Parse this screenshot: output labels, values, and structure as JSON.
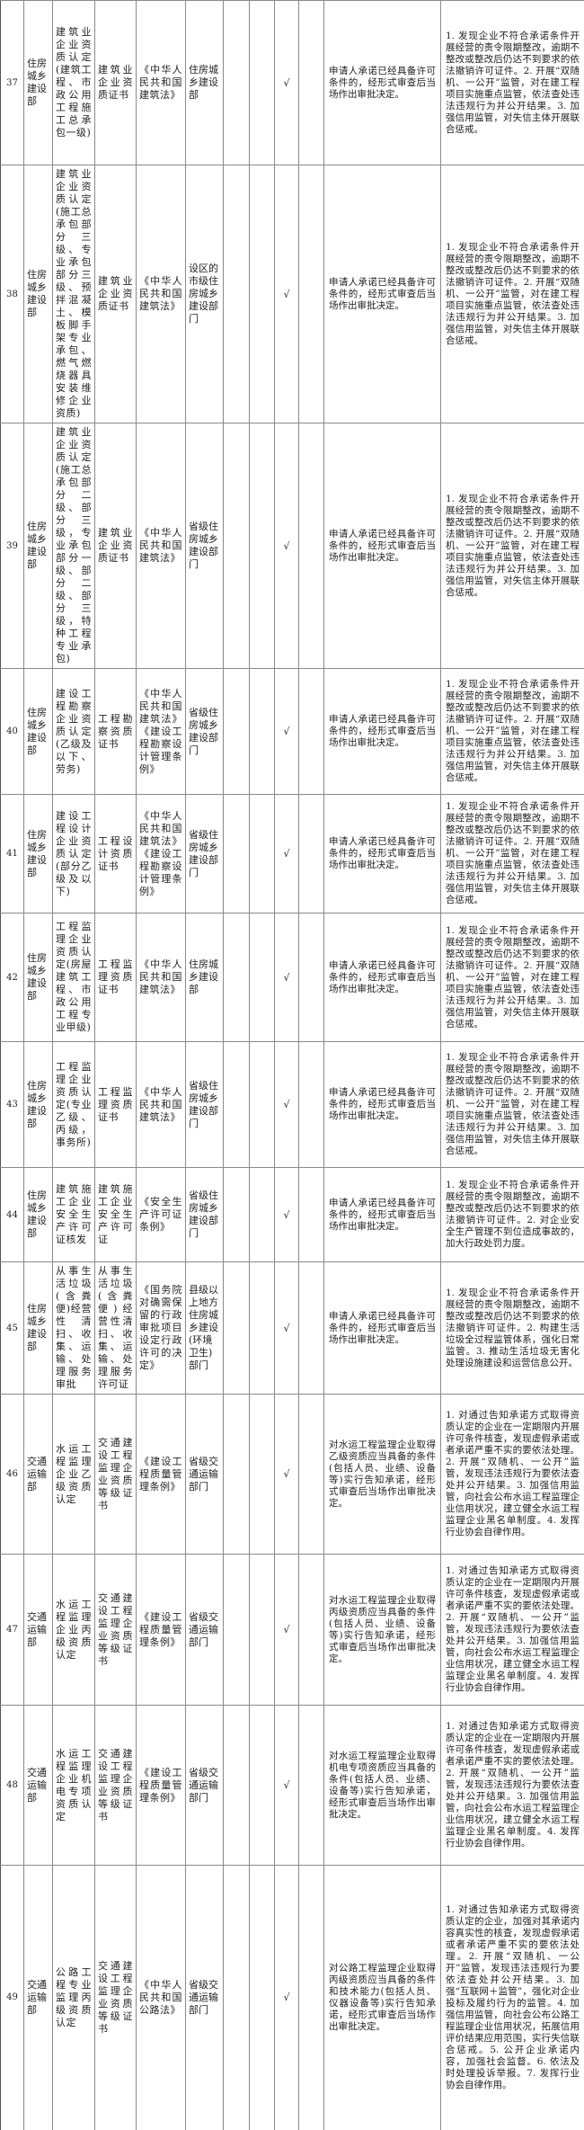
{
  "check_mark": "√",
  "check_column": 3,
  "rows": [
    {
      "no": "37",
      "dept": "住房城乡建设部",
      "item": "建筑业企业资质认定(建筑工程、市政公用工程施工总承包一级)",
      "cert": "建筑业企业资质证书",
      "law": "《中华人民共和国建筑法》",
      "authority": "住房城乡建设部",
      "condition": "申请人承诺已经具备许可条件的，经形式审查后当场作出审批决定。",
      "measures": "1. 发现企业不符合承诺条件开展经营的责令限期整改，逾期不整改或整改后仍达不到要求的依法撤销许可证件。2. 开展“双随机、一公开”监管，对在建工程项目实施重点监管，依法查处违法违规行为并公开结果。3. 加强信用监管，对失信主体开展联合惩戒。"
    },
    {
      "no": "38",
      "dept": "住房城乡建设部",
      "item": "建筑业企业资质认定(施工总承包部分三级、专业承包部分三级、预拌混凝土、模板脚手架专业承包、燃气燃烧器具安装维修企业资质)",
      "cert": "建筑业企业资质证书",
      "law": "《中华人民共和国建筑法》",
      "authority": "设区的市级住房城乡建设部门",
      "condition": "申请人承诺已经具备许可条件的，经形式审查后当场作出审批决定。",
      "measures": "1. 发现企业不符合承诺条件开展经营的责令限期整改，逾期不整改或整改后仍达不到要求的依法撤销许可证件。2. 开展“双随机、一公开”监管，对在建工程项目实施重点监管，依法查处违法违规行为并公开结果。3. 加强信用监管，对失信主体开展联合惩戒。"
    },
    {
      "no": "39",
      "dept": "住房城乡建设部",
      "item": "建筑业企业资质认定(施工总承包部分二级、部分三级，专业承包部分一级、部分二级、部分三级，特种工程专业承包)",
      "cert": "建筑业企业资质证书",
      "law": "《中华人民共和国建筑法》",
      "authority": "省级住房城乡建设部门",
      "condition": "申请人承诺已经具备许可条件的，经形式审查后当场作出审批决定。",
      "measures": "1. 发现企业不符合承诺条件开展经营的责令限期整改，逾期不整改或整改后仍达不到要求的依法撤销许可证件。2. 开展“双随机、一公开”监管，对在建工程项目实施重点监管，依法查处违法违规行为并公开结果。3. 加强信用监管，对失信主体开展联合惩戒。"
    },
    {
      "no": "40",
      "dept": "住房城乡建设部",
      "item": "建设工程勘察企业资质认定(乙级及以下、劳务)",
      "cert": "工程勘察资质证书",
      "law": "《中华人民共和国建筑法》《建设工程勘察设计管理条例》",
      "authority": "省级住房城乡建设部门",
      "condition": "申请人承诺已经具备许可条件的，经形式审查后当场作出审批决定。",
      "measures": "1. 发现企业不符合承诺条件开展经营的责令限期整改，逾期不整改或整改后仍达不到要求的依法撤销许可证件。2. 开展“双随机、一公开”监管，对在建工程项目实施重点监管，依法查处违法违规行为并公开结果。3. 加强信用监管，对失信主体开展联合惩戒。"
    },
    {
      "no": "41",
      "dept": "住房城乡建设部",
      "item": "建设工程设计企业资质认定(部分乙级及以下)",
      "cert": "工程设计资质证书",
      "law": "《中华人民共和国建筑法》《建设工程勘察设计管理条例》",
      "authority": "省级住房城乡建设部门",
      "condition": "申请人承诺已经具备许可条件的，经形式审查后当场作出审批决定。",
      "measures": "1. 发现企业不符合承诺条件开展经营的责令限期整改，逾期不整改或整改后仍达不到要求的依法撤销许可证件。2. 开展“双随机、一公开”监管，对在建工程项目实施重点监管，依法查处违法违规行为并公开结果。3. 加强信用监管，对失信主体开展联合惩戒。"
    },
    {
      "no": "42",
      "dept": "住房城乡建设部",
      "item": "工程监理企业资质认定(房屋建筑工程、市政公用工程专业甲级)",
      "cert": "工程监理资质证书",
      "law": "《中华人民共和国建筑法》",
      "authority": "住房城乡建设部",
      "condition": "申请人承诺已经具备许可条件的，经形式审查后当场作出审批决定。",
      "measures": "1. 发现企业不符合承诺条件开展经营的责令限期整改，逾期不整改或整改后仍达不到要求的依法撤销许可证件。2. 开展“双随机、一公开”监管，对在建工程项目实施重点监管，依法查处违法违规行为并公开结果。3. 加强信用监管，对失信主体开展联合惩戒。"
    },
    {
      "no": "43",
      "dept": "住房城乡建设部",
      "item": "工程监理企业资质认定(专业乙级、丙级，事务所)",
      "cert": "工程监理资质证书",
      "law": "《中华人民共和国建筑法》",
      "authority": "省级住房城乡建设部门",
      "condition": "申请人承诺已经具备许可条件的，经形式审查后当场作出审批决定。",
      "measures": "1. 发现企业不符合承诺条件开展经营的责令限期整改，逾期不整改或整改后仍达不到要求的依法撤销许可证件。2. 开展“双随机、一公开”监管，对在建工程项目实施重点监管，依法查处违法违规行为并公开结果。3. 加强信用监管，对失信主体开展联合惩戒。"
    },
    {
      "no": "44",
      "dept": "住房城乡建设部",
      "item": "建筑施工企业安全生产许可证核发",
      "cert": "建筑施工企业安全生产许可证",
      "law": "《安全生产许可证条例》",
      "authority": "省级住房城乡建设部门",
      "condition": "申请人承诺已经具备许可条件的，经形式审查后当场作出审批决定。",
      "measures": "1. 发现企业不符合承诺条件开展经营的责令限期整改，逾期不整改或整改后仍达不到要求的依法撤销许可证件。2. 对企业安全生产管理不到位造成事故的，加大行政处罚力度。"
    },
    {
      "no": "45",
      "dept": "住房城乡建设部",
      "item": "从事生活垃圾(含粪便)经营性清扫、收集、运输、处理服务审批",
      "cert": "从事生活垃圾(含粪便)经营性清扫、收集、运输、处理服务许可证",
      "law": "《国务院对确需保留的行政审批项目设定行政许可的决定》",
      "authority": "县级以上地方住房城乡建设(环境卫生)部门",
      "condition": "申请人承诺已经具备许可条件的，经形式审查后当场作出审批决定。",
      "measures": "1. 发现企业不符合承诺条件开展经营的责令限期整改，逾期不整改或整改后仍达不到要求的依法撤销许可证件。2. 构建生活垃圾全过程监管体系，强化日常监管。3. 推动生活垃圾无害化处理设施建设和运营信息公开。"
    },
    {
      "no": "46",
      "dept": "交通运输部",
      "item": "水运工程监理企业乙级资质认定",
      "cert": "交通建设工程监理企业资质等级证书",
      "law": "《建设工程质量管理条例》",
      "authority": "省级交通运输部门",
      "condition": "对水运工程监理企业取得乙级资质应当具备的条件(包括人员、业绩、设备等)实行告知承诺，经形式审查后当场作出审批决定。",
      "measures": "1. 对通过告知承诺方式取得资质认定的企业在一定期限内开展许可条件核查，发现虚假承诺或者承诺严重不实的要依法处理。2. 开展“双随机、一公开”监管，发现违法违规行为要依法查处并公开结果。3. 加强信用监管，向社会公布水运工程监理企业信用状况，建立健全水运工程监理企业黑名单制度。4. 发挥行业协会自律作用。"
    },
    {
      "no": "47",
      "dept": "交通运输部",
      "item": "水运工程监理企业丙级资质认定",
      "cert": "交通建设工程监理企业资质等级证书",
      "law": "《建设工程质量管理条例》",
      "authority": "省级交通运输部门",
      "condition": "对水运工程监理企业取得丙级资质应当具备的条件(包括人员、业绩、设备等)实行告知承诺，经形式审查后当场作出审批决定。",
      "measures": "1. 对通过告知承诺方式取得资质认定的企业在一定期限内开展许可条件核查，发现虚假承诺或者承诺严重不实的要依法处理。2. 开展“双随机、一公开”监管，发现违法违规行为要依法查处并公开结果。3. 加强信用监管，向社会公布水运工程监理企业信用状况，建立健全水运工程监理企业黑名单制度。4. 发挥行业协会自律作用。"
    },
    {
      "no": "48",
      "dept": "交通运输部",
      "item": "水运工程监理企业机电专项资质认定",
      "cert": "交通建设工程监理企业资质等级证书",
      "law": "《建设工程质量管理条例》",
      "authority": "省级交通运输部门",
      "condition": "对水运工程监理企业取得机电专项资质应当具备的条件(包括人员、业绩、设备等)实行告知承诺，经形式审查后当场作出审批决定。",
      "measures": "1. 对通过告知承诺方式取得资质认定的企业在一定期限内开展许可条件核查，发现虚假承诺或者承诺严重不实的要依法处理。2. 开展“双随机、一公开”监管，发现违法违规行为要依法查处并公开结果。3. 加强信用监管，向社会公布水运工程监理企业信用状况，建立健全水运工程监理企业黑名单制度。4. 发挥行业协会自律作用。"
    },
    {
      "no": "49",
      "dept": "交通运输部",
      "item": "公路工程专业监理丙级资质认定",
      "cert": "交通建设工程监理企业资质等级证书",
      "law": "《中华人民共和国公路法》",
      "authority": "省级交通运输部门",
      "condition": "对公路工程监理企业取得丙级资质应当具备的条件和技术能力(包括人员、仪器设备等)实行告知承诺，经形式审查后当场作出审批决定。",
      "measures": "1. 对通过告知承诺方式取得资质认定的企业，加强对其承诺内容真实性的核查，发现虚假承诺或者承诺严重不实的要依法处理。2. 开展“双随机、一公开”监管，发现违法违规行为要依法查处并公开结果。3. 加强“互联网＋监管”，强化对企业投标及履约行为的监管。4. 加强信用监管，向社会公布公路工程监理企业信用状况，拓展信用评价结果应用范围，实行失信联合惩戒。5. 公开企业承诺内容，加强社会监督。6. 依法及时处理投诉举报。7. 发挥行业协会自律作用。"
    }
  ]
}
